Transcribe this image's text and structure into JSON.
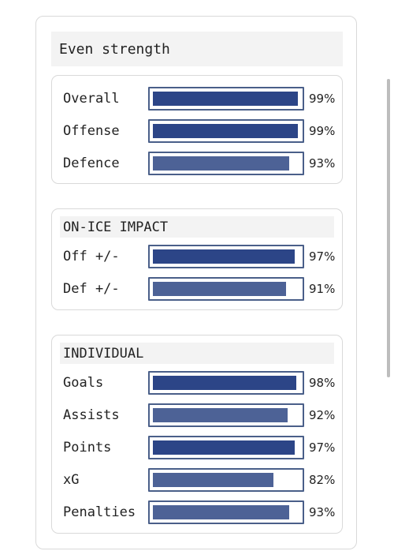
{
  "colors": {
    "bar_strong": "#2c4587",
    "bar_light": "#4d6296",
    "bar_border": "#4a5f89",
    "header_bg": "#f3f3f3"
  },
  "header": {
    "title": "Even strength"
  },
  "groups": [
    {
      "title": "",
      "stats": [
        {
          "label": "Overall",
          "value": 99,
          "pct": "99%"
        },
        {
          "label": "Offense",
          "value": 99,
          "pct": "99%"
        },
        {
          "label": "Defence",
          "value": 93,
          "pct": "93%"
        }
      ]
    },
    {
      "title": "ON-ICE IMPACT",
      "stats": [
        {
          "label": "Off +/-",
          "value": 97,
          "pct": "97%"
        },
        {
          "label": "Def +/-",
          "value": 91,
          "pct": "91%"
        }
      ]
    },
    {
      "title": "INDIVIDUAL",
      "stats": [
        {
          "label": "Goals",
          "value": 98,
          "pct": "98%"
        },
        {
          "label": "Assists",
          "value": 92,
          "pct": "92%"
        },
        {
          "label": "Points",
          "value": 97,
          "pct": "97%"
        },
        {
          "label": "xG",
          "value": 82,
          "pct": "82%"
        },
        {
          "label": "Penalties",
          "value": 93,
          "pct": "93%"
        }
      ]
    }
  ]
}
